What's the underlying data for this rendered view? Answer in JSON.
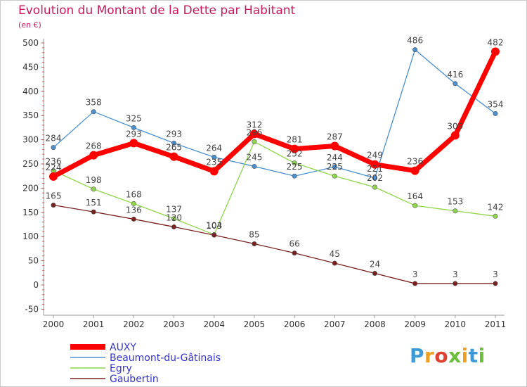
{
  "chart_data": {
    "type": "line",
    "title": "Evolution du Montant de la Dette par Habitant",
    "subtitle": "(en €)",
    "categories": [
      "2000",
      "2001",
      "2002",
      "2003",
      "2004",
      "2005",
      "2006",
      "2007",
      "2008",
      "2009",
      "2010",
      "2011"
    ],
    "ylim": [
      -50,
      500
    ],
    "yticks": [
      -50,
      0,
      50,
      100,
      150,
      200,
      250,
      300,
      350,
      400,
      450,
      500
    ],
    "grid": false,
    "legend_position": "bottom-left",
    "series": [
      {
        "name": "AUXY",
        "color": "#ff0000",
        "values": [
          224,
          268,
          293,
          265,
          235,
          312,
          281,
          287,
          249,
          236,
          309,
          482
        ],
        "labels": [
          "224",
          "268",
          "293",
          "265",
          "235",
          "312",
          "281",
          "287",
          "249",
          "236",
          "309",
          "482"
        ]
      },
      {
        "name": "Beaumont-du-Gâtinais",
        "color": "#4a90d0",
        "values": [
          284,
          358,
          325,
          293,
          264,
          245,
          225,
          244,
          221,
          486,
          416,
          354
        ],
        "labels": [
          "284",
          "358",
          "325",
          "293",
          "264",
          "245",
          "225",
          "244",
          "221",
          "486",
          "416",
          "354"
        ]
      },
      {
        "name": "Egry",
        "color": "#8ed64a",
        "values": [
          236,
          198,
          168,
          137,
          104,
          296,
          252,
          225,
          202,
          164,
          153,
          142
        ],
        "labels": [
          "236",
          "198",
          "168",
          "137",
          "104",
          "296",
          "252",
          "225",
          "202",
          "164",
          "153",
          "142"
        ]
      },
      {
        "name": "Gaubertin",
        "color": "#7a2020",
        "values": [
          165,
          151,
          136,
          120,
          103,
          85,
          66,
          45,
          24,
          3,
          3,
          3
        ],
        "labels": [
          "165",
          "151",
          "136",
          "120",
          "103",
          "85",
          "66",
          "45",
          "24",
          "3",
          "3",
          "3"
        ]
      }
    ]
  },
  "logo": {
    "letters": [
      "P",
      "r",
      "o",
      "x",
      "i",
      "t",
      "i"
    ],
    "colors": [
      "#3d9ad6",
      "#f0a020",
      "#e04030",
      "#6dbe3a",
      "#f0a020",
      "#3d9ad6",
      "#6dbe3a"
    ]
  }
}
